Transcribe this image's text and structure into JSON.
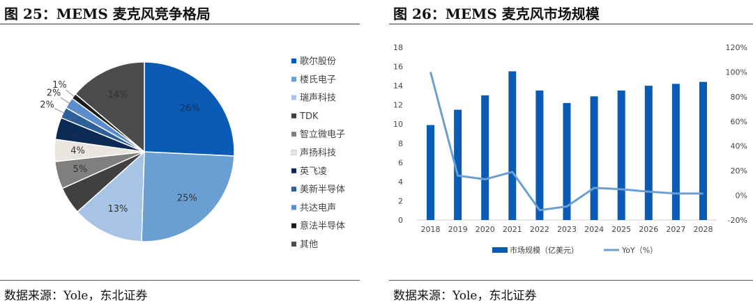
{
  "left": {
    "figure_title": "图 25：MEMS 麦克风竞争格局",
    "source": "数据来源：Yole，东北证券"
  },
  "right": {
    "figure_title": "图 26：MEMS 麦克风市场规模",
    "source": "数据来源：Yole，东北证券"
  },
  "chart_data": [
    {
      "type": "pie",
      "title": "",
      "legend_position": "right",
      "slices": [
        {
          "name": "歌尔股份",
          "value": 26,
          "label": "26%",
          "color": "#0a5bb5"
        },
        {
          "name": "楼氏电子",
          "value": 25,
          "label": "25%",
          "color": "#6a9fd4"
        },
        {
          "name": "瑞声科技",
          "value": 13,
          "label": "13%",
          "color": "#a7c4e6"
        },
        {
          "name": "TDK",
          "value": 5,
          "label": "",
          "color": "#404040"
        },
        {
          "name": "智立微电子",
          "value": 5,
          "label": "5%",
          "color": "#7f7f7f"
        },
        {
          "name": "声扬科技",
          "value": 4,
          "label": "4%",
          "color": "#e9e6df"
        },
        {
          "name": "英飞凌",
          "value": 4,
          "label": "4%",
          "color": "#0b2a55"
        },
        {
          "name": "美新半导体",
          "value": 2,
          "label": "2%",
          "color": "#2f5f98"
        },
        {
          "name": "共达电声",
          "value": 2,
          "label": "2%",
          "color": "#5b8ccc"
        },
        {
          "name": "意法半导体",
          "value": 1,
          "label": "1%",
          "color": "#1c1c1c"
        },
        {
          "name": "其他",
          "value": 14,
          "label": "14%",
          "color": "#4b4b4b"
        }
      ]
    },
    {
      "type": "bar+line",
      "title": "",
      "legend_position": "bottom",
      "categories": [
        "2018",
        "2019",
        "2020",
        "2021",
        "2022",
        "2023",
        "2024",
        "2025",
        "2026",
        "2027",
        "2028"
      ],
      "series": [
        {
          "name": "市场规模（亿美元）",
          "type": "bar",
          "axis": "left",
          "color": "#0a5bb5",
          "values": [
            9.9,
            11.5,
            13.0,
            15.5,
            13.5,
            12.2,
            12.9,
            13.5,
            14.0,
            14.2,
            14.4
          ]
        },
        {
          "name": "YoY（%）",
          "type": "line",
          "axis": "right",
          "color": "#6a9fd4",
          "values": [
            100,
            16,
            13,
            19,
            -12,
            -9,
            6,
            5,
            3,
            1.5,
            1.5
          ]
        }
      ],
      "y_left": {
        "min": 0,
        "max": 18,
        "step": 2,
        "ticks": [
          "0",
          "2",
          "4",
          "6",
          "8",
          "10",
          "12",
          "14",
          "16",
          "18"
        ]
      },
      "y_right": {
        "min": -20,
        "max": 120,
        "step": 20,
        "ticks": [
          "-20%",
          "0%",
          "20%",
          "40%",
          "60%",
          "80%",
          "100%",
          "120%"
        ]
      },
      "grid": false
    }
  ]
}
